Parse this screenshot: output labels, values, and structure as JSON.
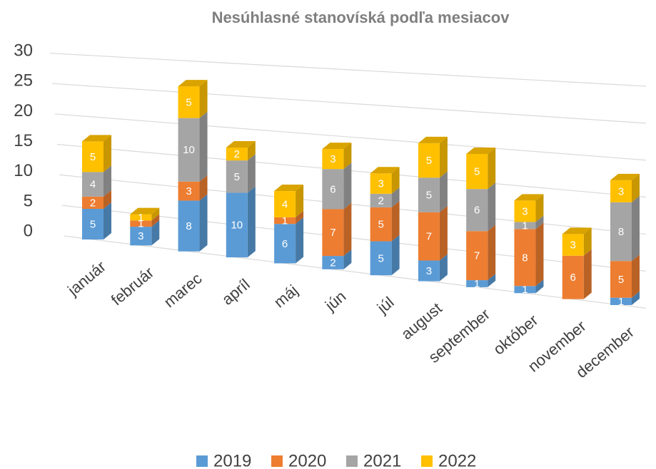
{
  "chart_data": {
    "type": "bar3d",
    "stacked": true,
    "title": "Nesúhlasné stanovíská podľa mesiacov",
    "categories": [
      "január",
      "február",
      "marec",
      "apríl",
      "máj",
      "jún",
      "júl",
      "august",
      "september",
      "október",
      "november",
      "december"
    ],
    "series": [
      {
        "name": "2019",
        "color": "#5b9bd5",
        "values": [
          5,
          3,
          8,
          10,
          6,
          2,
          5,
          3,
          1,
          1,
          0,
          1
        ]
      },
      {
        "name": "2020",
        "color": "#ed7d31",
        "values": [
          2,
          1,
          3,
          0,
          1,
          7,
          5,
          7,
          7,
          8,
          6,
          5
        ]
      },
      {
        "name": "2021",
        "color": "#a5a5a5",
        "values": [
          4,
          0,
          10,
          5,
          0,
          6,
          2,
          5,
          6,
          1,
          0,
          8
        ]
      },
      {
        "name": "2022",
        "color": "#ffc000",
        "values": [
          5,
          1,
          5,
          2,
          4,
          3,
          3,
          5,
          5,
          3,
          3,
          3
        ]
      }
    ],
    "ylim": [
      0,
      30
    ],
    "yticks": [
      0,
      5,
      10,
      15,
      20,
      25,
      30
    ],
    "grid": true,
    "legend": "bottom"
  }
}
